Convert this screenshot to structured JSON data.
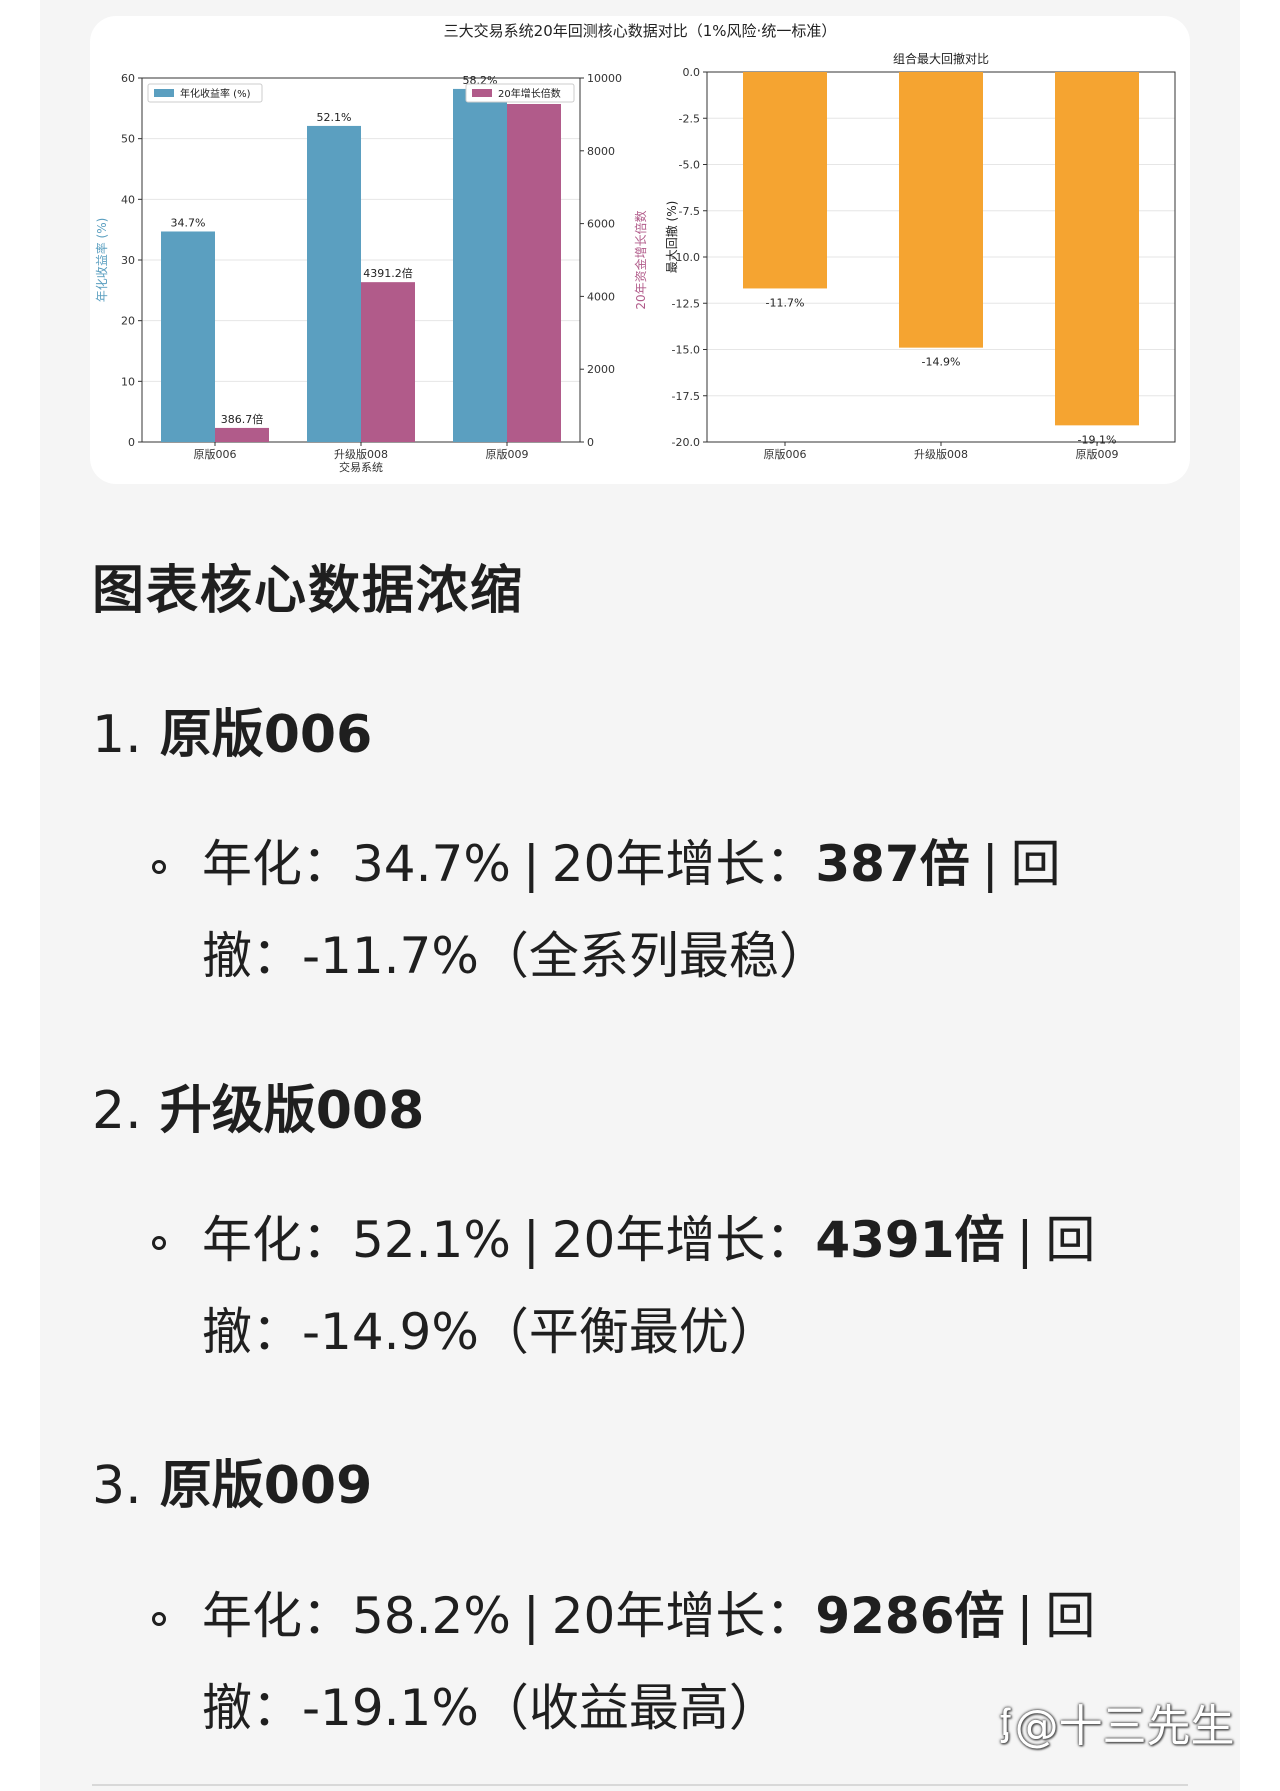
{
  "chart_data": [
    {
      "type": "bar",
      "title": "三大交易系统20年回测核心数据对比（1%风险·统一标准）",
      "categories": [
        "原版006",
        "升级版008",
        "原版009"
      ],
      "xlabel": "交易系统",
      "ylabel": "年化收益率 (%)",
      "ylabel_right": "20年资金增长倍数",
      "ylim": [
        0,
        60
      ],
      "ylim_right": [
        0,
        10000
      ],
      "yticks": [
        0,
        10,
        20,
        30,
        40,
        50,
        60
      ],
      "yticks_right": [
        0,
        2000,
        4000,
        6000,
        8000,
        10000
      ],
      "legend_position": "top-left / top-right",
      "grid": true,
      "series": [
        {
          "name": "年化收益率 (%)",
          "axis": "left",
          "color": "#5b9fc0",
          "values": [
            34.7,
            52.1,
            58.2
          ],
          "labels": [
            "34.7%",
            "52.1%",
            "58.2%"
          ]
        },
        {
          "name": "20年增长倍数",
          "axis": "right",
          "color": "#b15b8a",
          "values": [
            386.7,
            4391.2,
            9286
          ],
          "labels": [
            "386.7倍",
            "4391.2倍",
            ""
          ]
        }
      ]
    },
    {
      "type": "bar",
      "title": "组合最大回撤对比",
      "categories": [
        "原版006",
        "升级版008",
        "原版009"
      ],
      "ylabel": "最大回撤 (%)",
      "ylim": [
        -20,
        0
      ],
      "yticks": [
        0.0,
        -2.5,
        -5.0,
        -7.5,
        -10.0,
        -12.5,
        -15.0,
        -17.5,
        -20.0
      ],
      "grid": true,
      "color": "#f5a431",
      "values": [
        -11.7,
        -14.9,
        -19.1
      ],
      "labels": [
        "-11.7%",
        "-14.9%",
        "-19.1%"
      ]
    }
  ],
  "summary": {
    "heading": "图表核心数据浓缩",
    "systems": [
      {
        "number": "1.",
        "name": "原版006",
        "annual_label": "年化：",
        "annual": "34.7%",
        "growth_label": "20年增长：",
        "growth": "387倍",
        "drawdown_label": "回撤：",
        "drawdown": "-11.7%",
        "note": "（全系列最稳）"
      },
      {
        "number": "2.",
        "name": "升级版008",
        "annual_label": "年化：",
        "annual": "52.1%",
        "growth_label": "20年增长：",
        "growth": "4391倍",
        "drawdown_label": "回撤：",
        "drawdown": "-14.9%",
        "note": "（平衡最优）"
      },
      {
        "number": "3.",
        "name": "原版009",
        "annual_label": "年化：",
        "annual": "58.2%",
        "growth_label": "20年增长：",
        "growth": "9286倍",
        "drawdown_label": "回撤：",
        "drawdown": "-19.1%",
        "note": "（收益最高）"
      }
    ],
    "separator": "|"
  },
  "watermark": {
    "icon": "zhihu-logo-icon",
    "text": "@十三先生"
  }
}
